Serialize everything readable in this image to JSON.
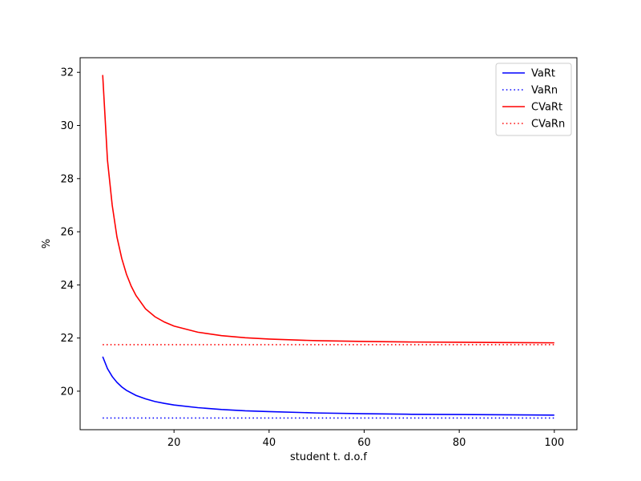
{
  "chart_data": {
    "type": "line",
    "title": "",
    "xlabel": "student t. d.o.f",
    "ylabel": "%",
    "xlim": [
      0.25,
      104.75
    ],
    "ylim": [
      18.55,
      32.55
    ],
    "xticks": [
      20,
      40,
      60,
      80,
      100
    ],
    "yticks": [
      20,
      22,
      24,
      26,
      28,
      30,
      32
    ],
    "grid": false,
    "legend_position": "upper right",
    "series": [
      {
        "name": "VaRt",
        "color": "#0000ff",
        "style": "solid",
        "x": [
          5,
          6,
          7,
          8,
          9,
          10,
          12,
          14,
          16,
          18,
          20,
          25,
          30,
          35,
          40,
          50,
          60,
          70,
          80,
          90,
          100
        ],
        "values": [
          21.3,
          20.85,
          20.55,
          20.33,
          20.16,
          20.03,
          19.84,
          19.71,
          19.61,
          19.54,
          19.48,
          19.38,
          19.31,
          19.26,
          19.23,
          19.18,
          19.15,
          19.13,
          19.12,
          19.11,
          19.1
        ]
      },
      {
        "name": "VaRn",
        "color": "#0000ff",
        "style": "dotted",
        "x": [
          5,
          100
        ],
        "values": [
          18.99,
          18.99
        ]
      },
      {
        "name": "CVaRt",
        "color": "#ff0000",
        "style": "solid",
        "x": [
          5,
          6,
          7,
          8,
          9,
          10,
          11,
          12,
          14,
          16,
          18,
          20,
          25,
          30,
          35,
          40,
          50,
          60,
          70,
          80,
          90,
          100
        ],
        "values": [
          31.9,
          28.7,
          27.0,
          25.8,
          25.0,
          24.4,
          23.95,
          23.6,
          23.1,
          22.8,
          22.6,
          22.45,
          22.22,
          22.09,
          22.01,
          21.96,
          21.9,
          21.87,
          21.85,
          21.84,
          21.83,
          21.82
        ]
      },
      {
        "name": "CVaRn",
        "color": "#ff0000",
        "style": "dotted",
        "x": [
          5,
          100
        ],
        "values": [
          21.75,
          21.75
        ]
      }
    ]
  }
}
